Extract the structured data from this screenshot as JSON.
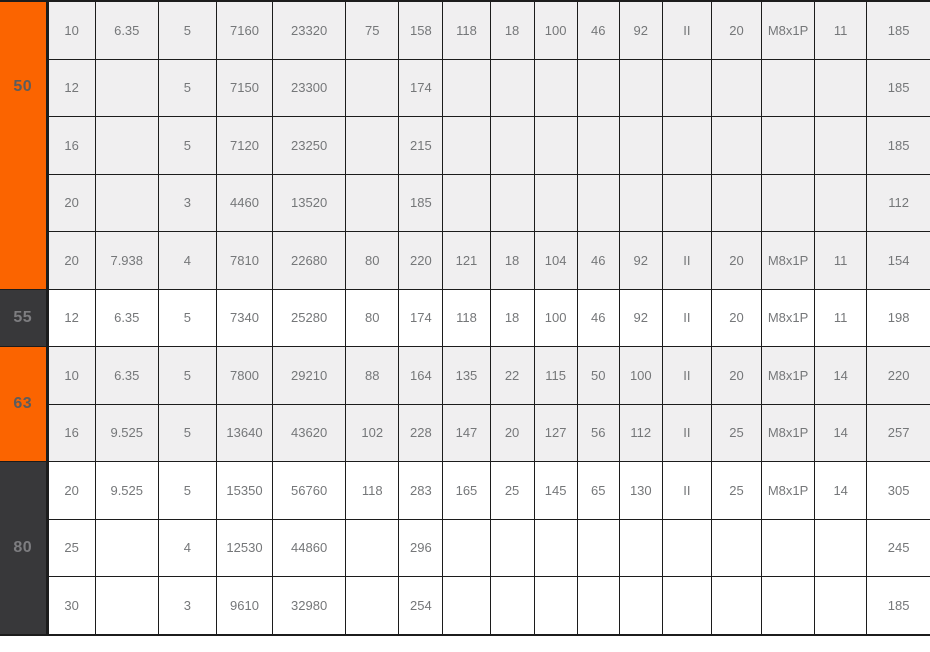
{
  "colors": {
    "group_orange": "#fb6400",
    "group_dark": "#38383a",
    "row_light": "#f0eff0",
    "row_white": "#ffffff",
    "grid_line": "#1c1c1c",
    "cell_text": "#757779",
    "label_on_orange": "#5c5c5c",
    "label_on_dark": "#7d7d80"
  },
  "chart_data": {
    "type": "table",
    "title": "",
    "header_row_visible": false,
    "column_count": 17,
    "legend_position": "none",
    "grid": true,
    "groups": [
      {
        "label": "50",
        "theme": "orange",
        "row_theme": "light",
        "rows": [
          [
            "10",
            "6.35",
            "5",
            "7160",
            "23320",
            "75",
            "158",
            "118",
            "18",
            "100",
            "46",
            "92",
            "II",
            "20",
            "M8x1P",
            "11",
            "185"
          ],
          [
            "12",
            "",
            "5",
            "7150",
            "23300",
            "",
            "174",
            "",
            "",
            "",
            "",
            "",
            "",
            "",
            "",
            "",
            "185"
          ],
          [
            "16",
            "",
            "5",
            "7120",
            "23250",
            "",
            "215",
            "",
            "",
            "",
            "",
            "",
            "",
            "",
            "",
            "",
            "185"
          ],
          [
            "20",
            "",
            "3",
            "4460",
            "13520",
            "",
            "185",
            "",
            "",
            "",
            "",
            "",
            "",
            "",
            "",
            "",
            "112"
          ],
          [
            "20",
            "7.938",
            "4",
            "7810",
            "22680",
            "80",
            "220",
            "121",
            "18",
            "104",
            "46",
            "92",
            "II",
            "20",
            "M8x1P",
            "11",
            "154"
          ]
        ]
      },
      {
        "label": "55",
        "theme": "dark",
        "row_theme": "white",
        "rows": [
          [
            "12",
            "6.35",
            "5",
            "7340",
            "25280",
            "80",
            "174",
            "118",
            "18",
            "100",
            "46",
            "92",
            "II",
            "20",
            "M8x1P",
            "11",
            "198"
          ]
        ]
      },
      {
        "label": "63",
        "theme": "orange",
        "row_theme": "light",
        "rows": [
          [
            "10",
            "6.35",
            "5",
            "7800",
            "29210",
            "88",
            "164",
            "135",
            "22",
            "115",
            "50",
            "100",
            "II",
            "20",
            "M8x1P",
            "14",
            "220"
          ],
          [
            "16",
            "9.525",
            "5",
            "13640",
            "43620",
            "102",
            "228",
            "147",
            "20",
            "127",
            "56",
            "112",
            "II",
            "25",
            "M8x1P",
            "14",
            "257"
          ]
        ]
      },
      {
        "label": "80",
        "theme": "dark",
        "row_theme": "white",
        "rows": [
          [
            "20",
            "9.525",
            "5",
            "15350",
            "56760",
            "118",
            "283",
            "165",
            "25",
            "145",
            "65",
            "130",
            "II",
            "25",
            "M8x1P",
            "14",
            "305"
          ],
          [
            "25",
            "",
            "4",
            "12530",
            "44860",
            "",
            "296",
            "",
            "",
            "",
            "",
            "",
            "",
            "",
            "",
            "",
            "245"
          ],
          [
            "30",
            "",
            "3",
            "9610",
            "32980",
            "",
            "254",
            "",
            "",
            "",
            "",
            "",
            "",
            "",
            "",
            "",
            "185"
          ]
        ]
      }
    ]
  }
}
